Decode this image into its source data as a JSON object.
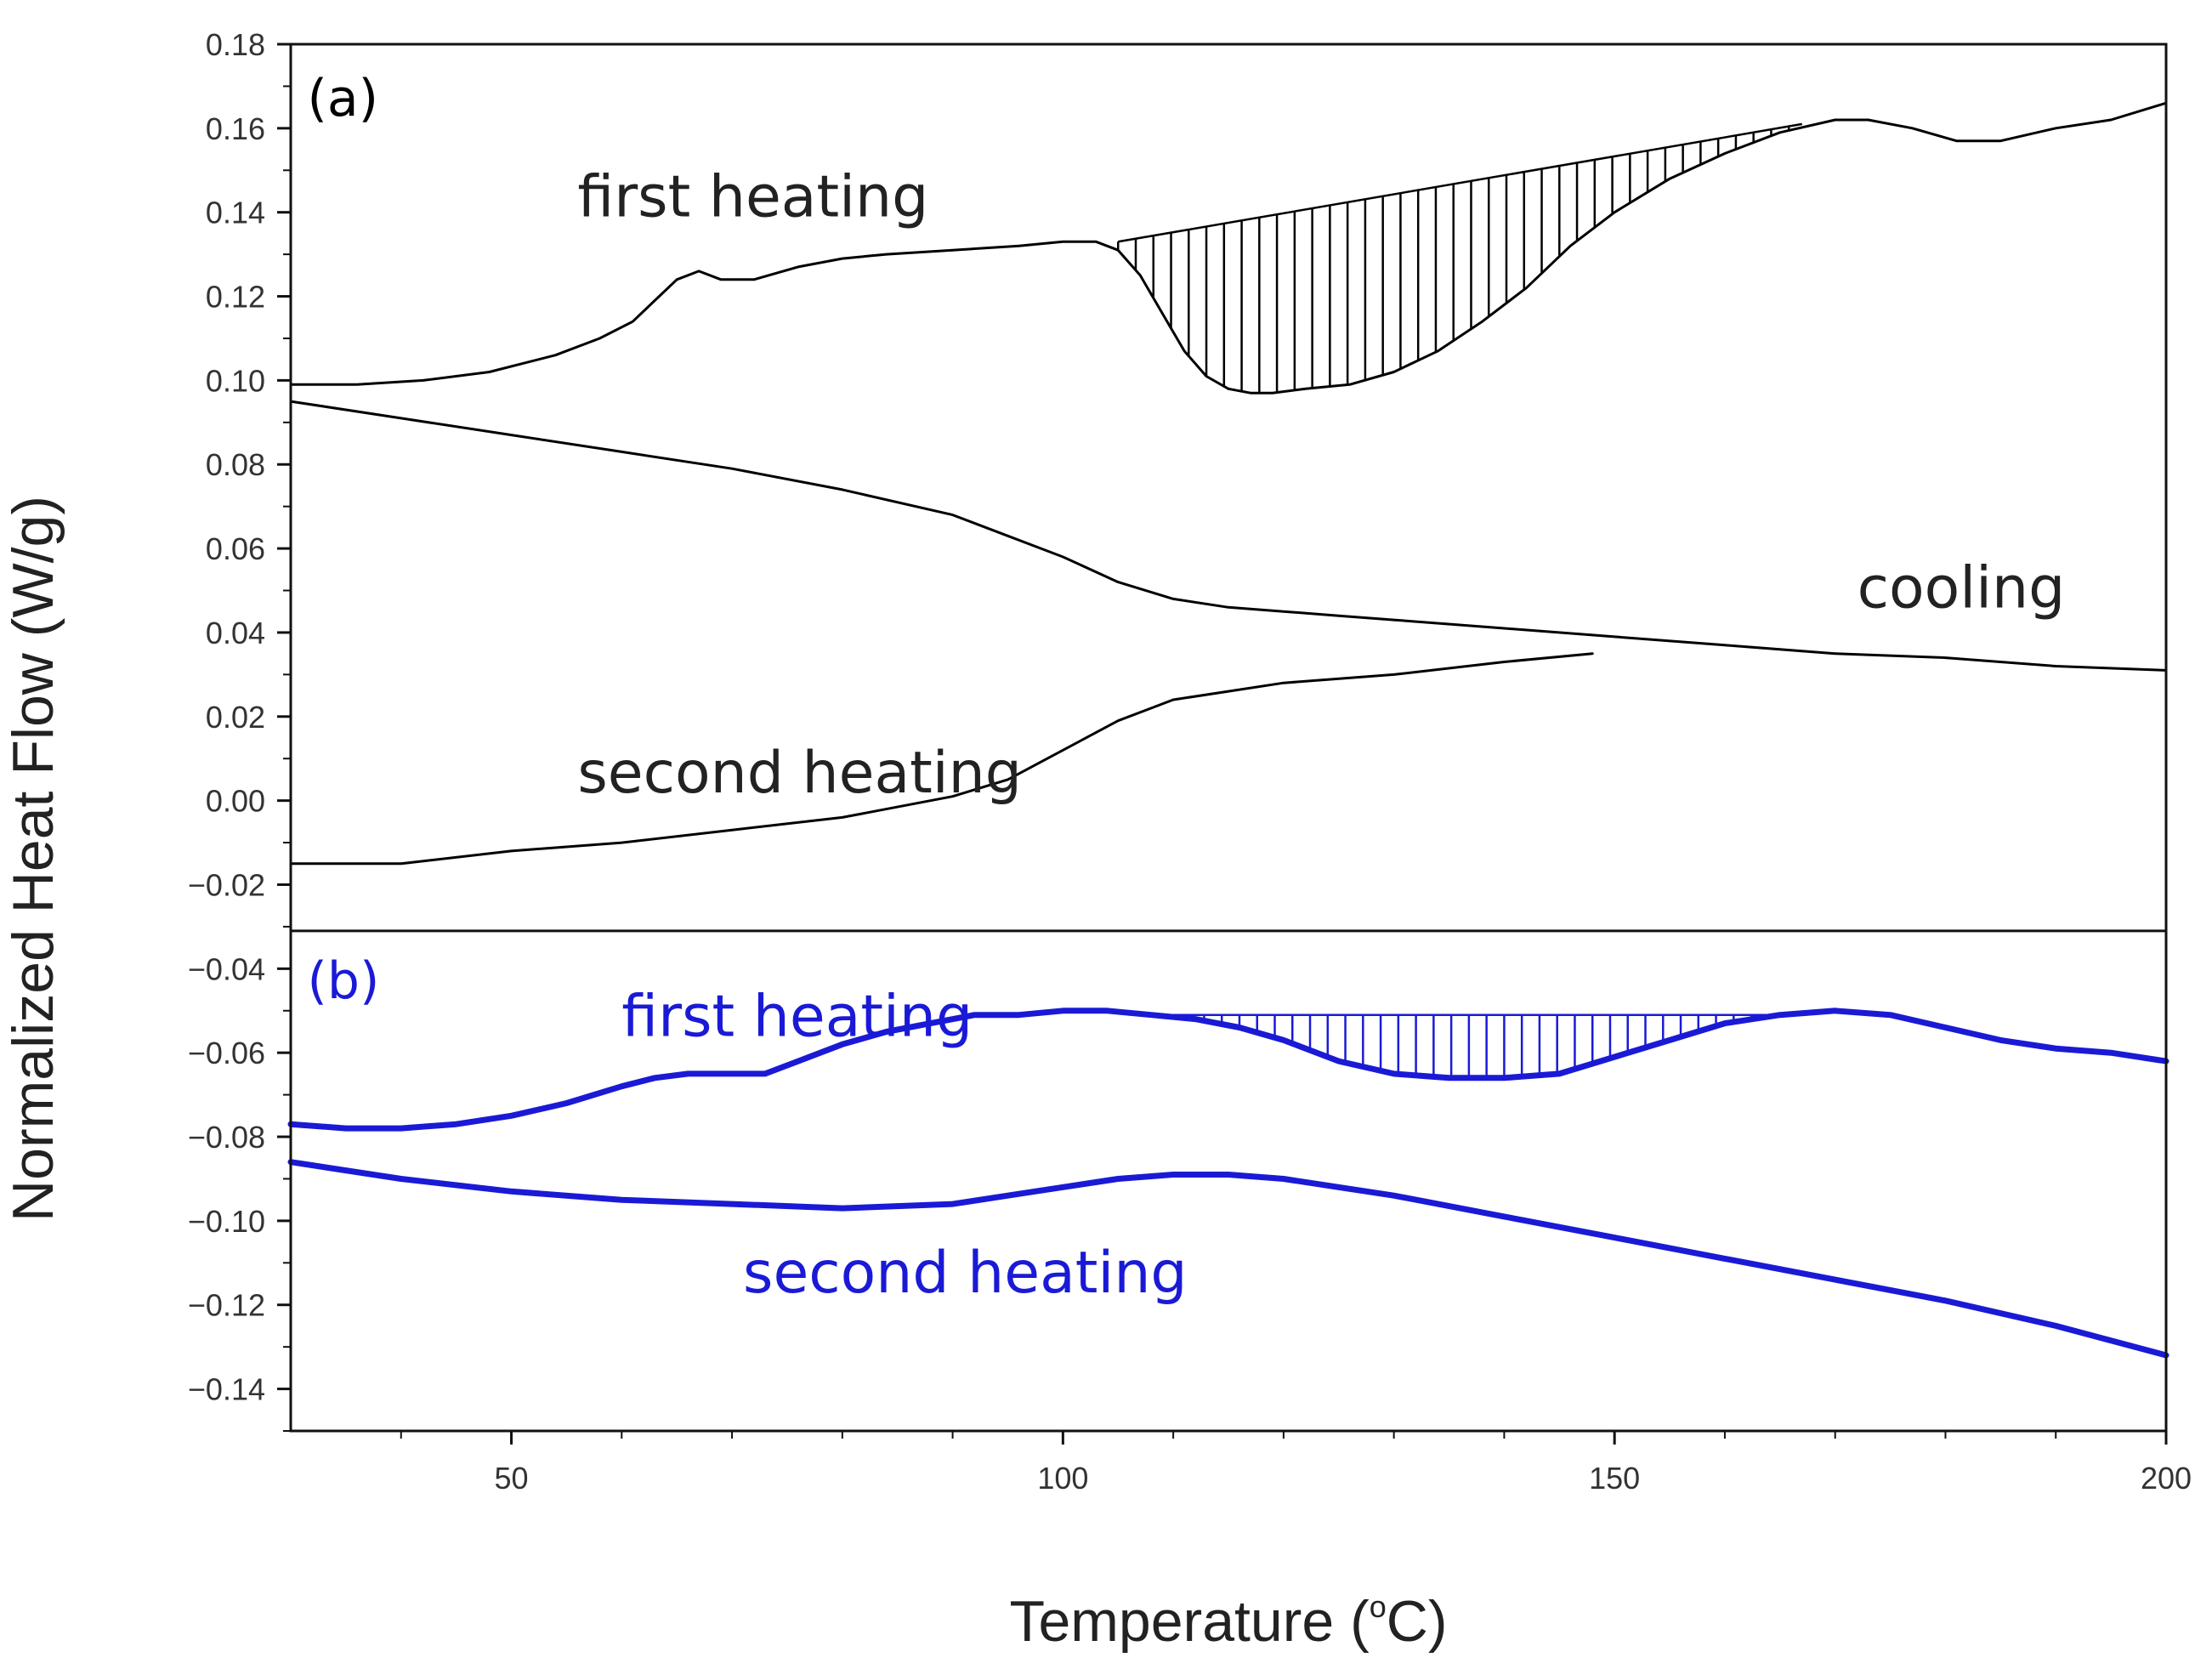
{
  "chart_data": {
    "type": "line",
    "xlabel_main": "Temperature (",
    "xlabel_sup": "o",
    "xlabel_end": "C)",
    "ylabel": "Normalized Heat Flow (W/g)",
    "xlim": [
      30,
      200
    ],
    "ylim": [
      -0.15,
      0.18
    ],
    "panel_split_y": -0.031,
    "x_ticks": [
      {
        "value": 50,
        "label": "50"
      },
      {
        "value": 100,
        "label": "100"
      },
      {
        "value": 150,
        "label": "150"
      },
      {
        "value": 200,
        "label": "200"
      }
    ],
    "y_ticks": [
      {
        "value": 0.18,
        "label": "0.18"
      },
      {
        "value": 0.16,
        "label": "0.16"
      },
      {
        "value": 0.14,
        "label": "0.14"
      },
      {
        "value": 0.12,
        "label": "0.12"
      },
      {
        "value": 0.1,
        "label": "0.10"
      },
      {
        "value": 0.08,
        "label": "0.08"
      },
      {
        "value": 0.06,
        "label": "0.06"
      },
      {
        "value": 0.04,
        "label": "0.04"
      },
      {
        "value": 0.02,
        "label": "0.02"
      },
      {
        "value": 0.0,
        "label": "0.00"
      },
      {
        "value": -0.02,
        "label": "−0.02"
      },
      {
        "value": -0.04,
        "label": "−0.04"
      },
      {
        "value": -0.06,
        "label": "−0.06"
      },
      {
        "value": -0.08,
        "label": "−0.08"
      },
      {
        "value": -0.1,
        "label": "−0.10"
      },
      {
        "value": -0.12,
        "label": "−0.12"
      },
      {
        "value": -0.14,
        "label": "−0.14"
      }
    ],
    "panels": [
      {
        "label": "(a)",
        "color": "#000000",
        "label_x": 31.5,
        "label_y": 0.163
      },
      {
        "label": "(b)",
        "color": "#1a1ad6",
        "label_x": 31.5,
        "label_y": -0.047
      }
    ],
    "series": [
      {
        "name": "a-first-heating",
        "color": "#000000",
        "width": 3,
        "x": [
          30,
          36,
          42,
          48,
          54,
          58,
          61,
          63,
          65,
          67,
          69,
          72,
          76,
          80,
          84,
          90,
          96,
          100,
          103,
          105,
          107,
          109,
          111,
          113,
          115,
          117,
          119,
          122,
          126,
          130,
          134,
          138,
          142,
          146,
          150,
          155,
          160,
          165,
          170,
          173,
          177,
          181,
          185,
          190,
          195,
          200
        ],
        "y": [
          0.099,
          0.099,
          0.1,
          0.102,
          0.106,
          0.11,
          0.114,
          0.119,
          0.124,
          0.126,
          0.124,
          0.124,
          0.127,
          0.129,
          0.13,
          0.131,
          0.132,
          0.133,
          0.133,
          0.131,
          0.125,
          0.116,
          0.107,
          0.101,
          0.098,
          0.097,
          0.097,
          0.098,
          0.099,
          0.102,
          0.107,
          0.114,
          0.122,
          0.132,
          0.14,
          0.148,
          0.154,
          0.159,
          0.162,
          0.162,
          0.16,
          0.157,
          0.157,
          0.16,
          0.162,
          0.166
        ]
      },
      {
        "name": "a-cooling",
        "color": "#000000",
        "width": 3,
        "x": [
          30,
          40,
          50,
          60,
          70,
          80,
          90,
          95,
          100,
          105,
          110,
          115,
          120,
          125,
          130,
          140,
          150,
          160,
          170,
          180,
          190,
          200
        ],
        "y": [
          0.095,
          0.091,
          0.087,
          0.083,
          0.079,
          0.074,
          0.068,
          0.063,
          0.058,
          0.052,
          0.048,
          0.046,
          0.045,
          0.044,
          0.043,
          0.041,
          0.039,
          0.037,
          0.035,
          0.034,
          0.032,
          0.031
        ]
      },
      {
        "name": "a-second-heating",
        "color": "#000000",
        "width": 3,
        "x": [
          30,
          40,
          50,
          60,
          70,
          80,
          90,
          95,
          100,
          105,
          108,
          110,
          115,
          120,
          130,
          140,
          148
        ],
        "y": [
          -0.015,
          -0.015,
          -0.012,
          -0.01,
          -0.007,
          -0.004,
          0.001,
          0.005,
          0.012,
          0.019,
          0.022,
          0.024,
          0.026,
          0.028,
          0.03,
          0.033,
          0.035
        ]
      },
      {
        "name": "b-first-heating",
        "color": "#1a1ad6",
        "width": 7,
        "x": [
          30,
          35,
          40,
          45,
          50,
          55,
          60,
          63,
          66,
          70,
          73,
          76,
          80,
          84,
          88,
          92,
          96,
          100,
          104,
          108,
          112,
          116,
          120,
          125,
          130,
          135,
          140,
          145,
          150,
          155,
          160,
          165,
          170,
          175,
          180,
          185,
          190,
          195,
          200
        ],
        "y": [
          -0.077,
          -0.078,
          -0.078,
          -0.077,
          -0.075,
          -0.072,
          -0.068,
          -0.066,
          -0.065,
          -0.065,
          -0.065,
          -0.062,
          -0.058,
          -0.055,
          -0.053,
          -0.051,
          -0.051,
          -0.05,
          -0.05,
          -0.051,
          -0.052,
          -0.054,
          -0.057,
          -0.062,
          -0.065,
          -0.066,
          -0.066,
          -0.065,
          -0.061,
          -0.057,
          -0.053,
          -0.051,
          -0.05,
          -0.051,
          -0.054,
          -0.057,
          -0.059,
          -0.06,
          -0.062
        ]
      },
      {
        "name": "b-second-heating",
        "color": "#1a1ad6",
        "width": 7,
        "x": [
          30,
          40,
          50,
          60,
          70,
          80,
          90,
          95,
          100,
          105,
          110,
          115,
          120,
          130,
          140,
          150,
          160,
          170,
          180,
          190,
          200
        ],
        "y": [
          -0.086,
          -0.09,
          -0.093,
          -0.095,
          -0.096,
          -0.097,
          -0.096,
          -0.094,
          -0.092,
          -0.09,
          -0.089,
          -0.089,
          -0.09,
          -0.094,
          -0.099,
          -0.104,
          -0.109,
          -0.114,
          -0.119,
          -0.125,
          -0.132
        ]
      }
    ],
    "shaded_regions": [
      {
        "name": "a-enthalpy-hatch",
        "color": "#000000",
        "x_start": 105,
        "x_end": 167,
        "step": 1.6,
        "baseline_x": [
          105,
          167
        ],
        "baseline_y": [
          0.133,
          0.161
        ],
        "curve": "a-first-heating"
      },
      {
        "name": "b-enthalpy-hatch",
        "color": "#1a1ad6",
        "x_start": 108,
        "x_end": 165,
        "step": 1.6,
        "baseline_x": [
          108,
          165
        ],
        "baseline_y": [
          -0.051,
          -0.051
        ],
        "curve": "b-first-heating"
      }
    ],
    "annotations": [
      {
        "text": "first heating",
        "x": 56,
        "y": 0.139,
        "color": "#222222"
      },
      {
        "text": "cooling",
        "x": 172,
        "y": 0.046,
        "color": "#222222"
      },
      {
        "text": "second heating",
        "x": 56,
        "y": 0.002,
        "color": "#222222"
      },
      {
        "text": "first heating",
        "x": 60,
        "y": -0.056,
        "color": "#1a1ad6"
      },
      {
        "text": "second heating",
        "x": 71,
        "y": -0.117,
        "color": "#1a1ad6"
      }
    ]
  }
}
